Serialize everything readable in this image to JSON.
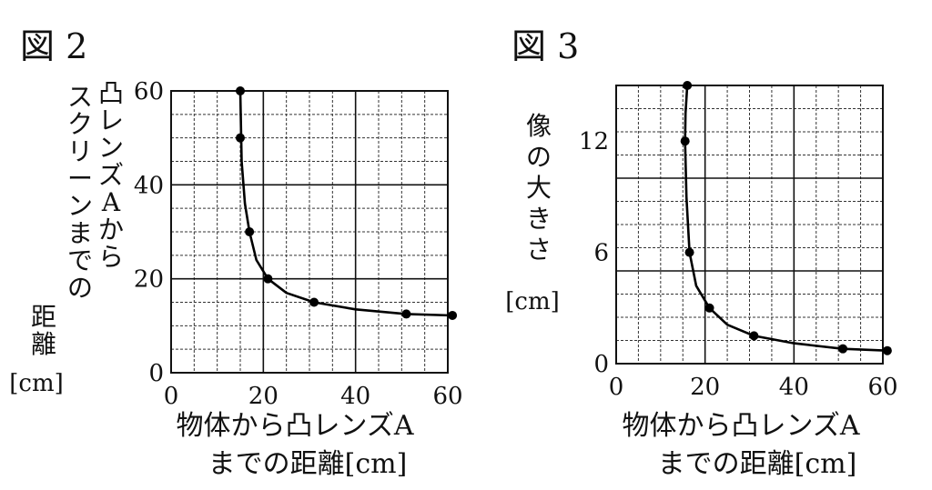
{
  "figures": [
    {
      "label": "図 2",
      "ylabel_lines": [
        "凸レンズAから",
        "スクリーンまでの",
        "距離"
      ],
      "yunit": "[cm]",
      "xlabel_lines": [
        "物体から凸レンズA",
        "までの距離[cm]"
      ]
    },
    {
      "label": "図 3",
      "ylabel_lines": [
        "像の大きさ"
      ],
      "yunit": "[cm]",
      "xlabel_lines": [
        "物体から凸レンズA",
        "までの距離[cm]"
      ]
    }
  ],
  "chart_data": [
    {
      "type": "line",
      "title": "図 2",
      "xlabel": "物体から凸レンズAまでの距離[cm]",
      "ylabel": "凸レンズAからスクリーンまでの距離[cm]",
      "xlim": [
        0,
        60
      ],
      "ylim": [
        0,
        60
      ],
      "xticks": [
        0,
        20,
        40,
        60
      ],
      "yticks": [
        0,
        20,
        40,
        60
      ],
      "grid": true,
      "points": [
        [
          15,
          60
        ],
        [
          15,
          50
        ],
        [
          17,
          30
        ],
        [
          21,
          20
        ],
        [
          31,
          15
        ],
        [
          51,
          12.5
        ],
        [
          61,
          12.2
        ]
      ],
      "curve": [
        [
          15,
          60
        ],
        [
          15.3,
          45
        ],
        [
          16,
          36
        ],
        [
          17,
          30
        ],
        [
          18.5,
          24
        ],
        [
          21,
          20
        ],
        [
          25,
          17
        ],
        [
          31,
          15
        ],
        [
          40,
          13.5
        ],
        [
          51,
          12.5
        ],
        [
          61,
          12.2
        ]
      ]
    },
    {
      "type": "line",
      "title": "図 3",
      "xlabel": "物体から凸レンズAまでの距離[cm]",
      "ylabel": "像の大きさ[cm]",
      "xlim": [
        0,
        60
      ],
      "ylim": [
        0,
        15
      ],
      "xticks": [
        0,
        20,
        40,
        60
      ],
      "yticks": [
        0,
        6,
        12
      ],
      "grid": true,
      "points": [
        [
          16,
          15
        ],
        [
          15.5,
          12
        ],
        [
          16.5,
          6
        ],
        [
          21,
          3
        ],
        [
          31,
          1.5
        ],
        [
          51,
          0.8
        ],
        [
          61,
          0.7
        ]
      ],
      "curve": [
        [
          16,
          15
        ],
        [
          15.6,
          13.5
        ],
        [
          15.5,
          12
        ],
        [
          15.8,
          9
        ],
        [
          16.5,
          6
        ],
        [
          18,
          4.2
        ],
        [
          21,
          3
        ],
        [
          25,
          2.1
        ],
        [
          31,
          1.5
        ],
        [
          40,
          1.1
        ],
        [
          51,
          0.8
        ],
        [
          61,
          0.7
        ]
      ]
    }
  ]
}
